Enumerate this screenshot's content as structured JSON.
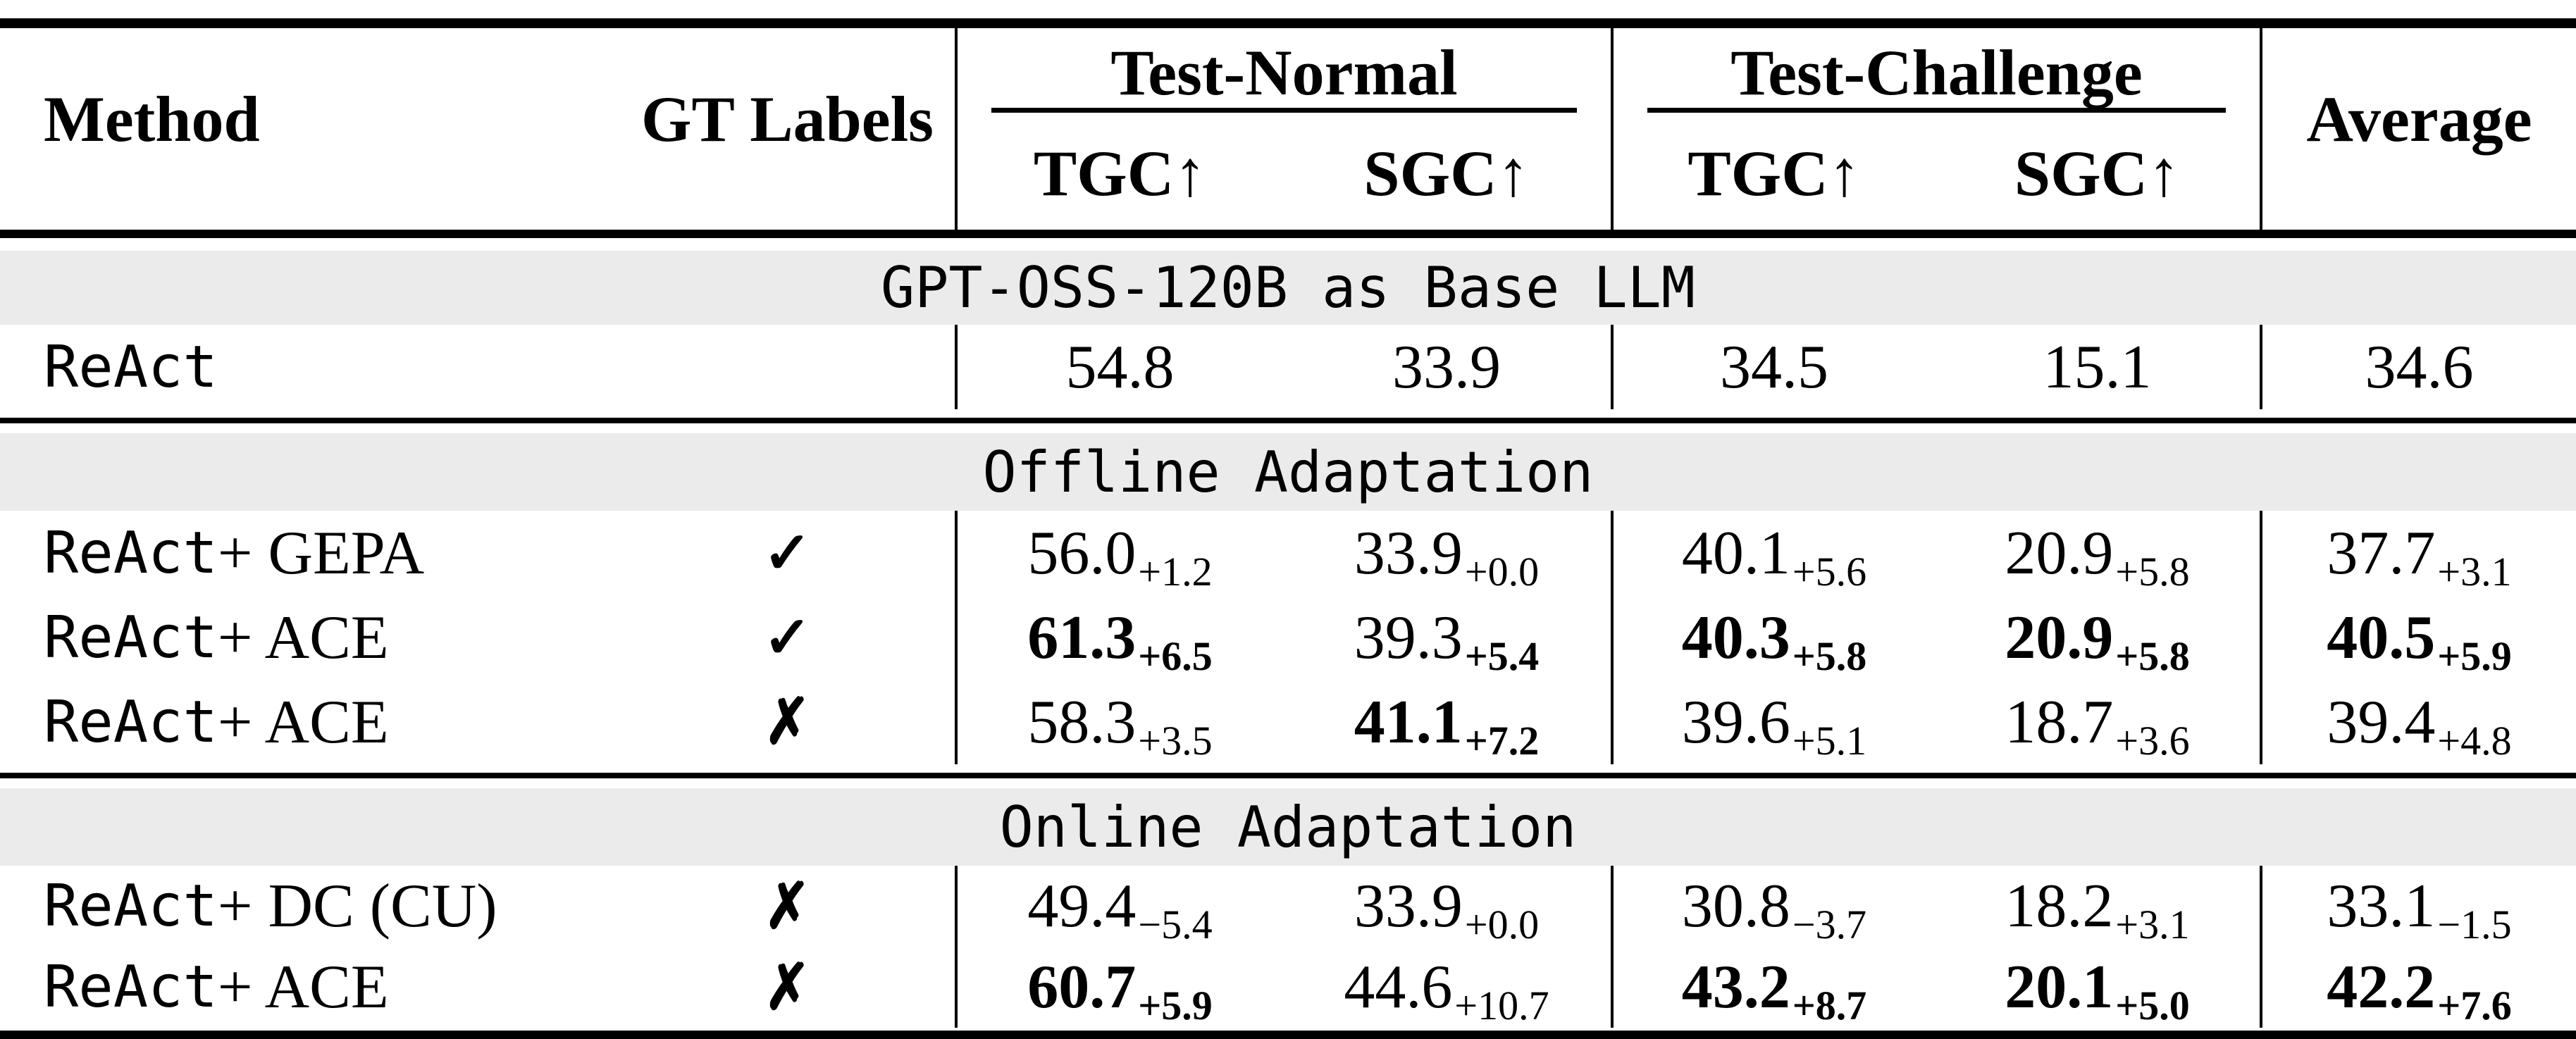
{
  "colors": {
    "band_background": "#ebebeb",
    "text": "#000000",
    "rule": "#000000"
  },
  "header": {
    "method": "Method",
    "gt_labels": "GT Labels",
    "groups": [
      {
        "label": "Test-Normal"
      },
      {
        "label": "Test-Challenge"
      }
    ],
    "subcols": [
      "TGC↑",
      "SGC↑",
      "TGC↑",
      "SGC↑"
    ],
    "average": "Average"
  },
  "sections": [
    {
      "title": "GPT-OSS-120B as Base LLM",
      "rows": [
        {
          "method_mono": "ReAct",
          "method_rest": "",
          "gt": "",
          "cells": [
            {
              "v": "54.8"
            },
            {
              "v": "33.9"
            },
            {
              "v": "34.5"
            },
            {
              "v": "15.1"
            },
            {
              "v": "34.6"
            }
          ]
        }
      ]
    },
    {
      "title": "Offline Adaptation",
      "rows": [
        {
          "method_mono": "ReAct",
          "method_rest": " + GEPA",
          "gt": "✓",
          "cells": [
            {
              "v": "56.0",
              "s": "+1.2",
              "v_bold": false,
              "s_bold": false
            },
            {
              "v": "33.9",
              "s": "+0.0",
              "v_bold": false,
              "s_bold": false
            },
            {
              "v": "40.1",
              "s": "+5.6",
              "v_bold": false,
              "s_bold": false
            },
            {
              "v": "20.9",
              "s": "+5.8",
              "v_bold": false,
              "s_bold": false
            },
            {
              "v": "37.7",
              "s": "+3.1",
              "v_bold": false,
              "s_bold": false
            }
          ]
        },
        {
          "method_mono": "ReAct",
          "method_rest": " + ACE",
          "gt": "✓",
          "cells": [
            {
              "v": "61.3",
              "s": "+6.5",
              "v_bold": true,
              "s_bold": true
            },
            {
              "v": "39.3",
              "s": "+5.4",
              "v_bold": false,
              "s_bold": true
            },
            {
              "v": "40.3",
              "s": "+5.8",
              "v_bold": true,
              "s_bold": true
            },
            {
              "v": "20.9",
              "s": "+5.8",
              "v_bold": true,
              "s_bold": true
            },
            {
              "v": "40.5",
              "s": "+5.9",
              "v_bold": true,
              "s_bold": true
            }
          ]
        },
        {
          "method_mono": "ReAct",
          "method_rest": " + ACE",
          "gt": "✗",
          "cells": [
            {
              "v": "58.3",
              "s": "+3.5",
              "v_bold": false,
              "s_bold": false
            },
            {
              "v": "41.1",
              "s": "+7.2",
              "v_bold": true,
              "s_bold": true
            },
            {
              "v": "39.6",
              "s": "+5.1",
              "v_bold": false,
              "s_bold": false
            },
            {
              "v": "18.7",
              "s": "+3.6",
              "v_bold": false,
              "s_bold": false
            },
            {
              "v": "39.4",
              "s": "+4.8",
              "v_bold": false,
              "s_bold": false
            }
          ]
        }
      ]
    },
    {
      "title": "Online Adaptation",
      "rows": [
        {
          "method_mono": "ReAct",
          "method_rest": " + DC (CU)",
          "gt": "✗",
          "cells": [
            {
              "v": "49.4",
              "s": "−5.4",
              "v_bold": false,
              "s_bold": false
            },
            {
              "v": "33.9",
              "s": "+0.0",
              "v_bold": false,
              "s_bold": false
            },
            {
              "v": "30.8",
              "s": "−3.7",
              "v_bold": false,
              "s_bold": false
            },
            {
              "v": "18.2",
              "s": "+3.1",
              "v_bold": false,
              "s_bold": false
            },
            {
              "v": "33.1",
              "s": "−1.5",
              "v_bold": false,
              "s_bold": false
            }
          ]
        },
        {
          "method_mono": "ReAct",
          "method_rest": " + ACE",
          "gt": "✗",
          "cells": [
            {
              "v": "60.7",
              "s": "+5.9",
              "v_bold": true,
              "s_bold": true
            },
            {
              "v": "44.6",
              "s": "+10.7",
              "v_bold": false,
              "s_bold": false
            },
            {
              "v": "43.2",
              "s": "+8.7",
              "v_bold": true,
              "s_bold": true
            },
            {
              "v": "20.1",
              "s": "+5.0",
              "v_bold": true,
              "s_bold": true
            },
            {
              "v": "42.2",
              "s": "+7.6",
              "v_bold": true,
              "s_bold": true
            }
          ]
        }
      ]
    }
  ]
}
